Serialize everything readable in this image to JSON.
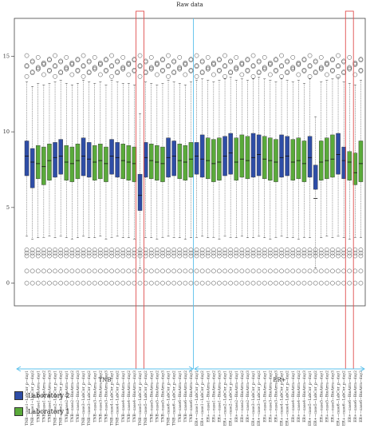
{
  "chart_data": {
    "type": "boxplot",
    "title": "Raw data",
    "xlabel": "",
    "ylabel": "",
    "ylim": [
      -1.5,
      17.5
    ],
    "yticks": [
      0,
      5,
      10,
      15
    ],
    "grid": false,
    "groups": [
      {
        "name": "TNB",
        "start": 0,
        "end": 29
      },
      {
        "name": "ER+",
        "start": 30,
        "end": 59
      }
    ],
    "highlighted_samples": [
      20,
      57
    ],
    "series": [
      {
        "name": "Laboratory 2",
        "color": "#2e4da6"
      },
      {
        "name": "Laboratory 1",
        "color": "#5aaa3a"
      }
    ],
    "categories": [
      "TNB−case1−LabCor_p−day1",
      "TNB−case1−LabCor_p−day2",
      "TNB−case1−BioArra−day1",
      "TNB−case1−BioArra−day2",
      "TNB−case1−BioArra−day3",
      "TNB−case2−LabCor_p−day1",
      "TNB−case2−LabCor_p−day2",
      "TNB−case2−BioArra−day1",
      "TNB−case2−BioArra−day2",
      "TNB−case2−BioArra−day3",
      "TNB−case3−LabCor_p−day1",
      "TNB−case3−LabCor_p−day2",
      "TNB−case3−BioArra−day1",
      "TNB−case3−BioArra−day2",
      "TNB−case3−BioArra−day3",
      "TNB−case4−LabCor_p−day1",
      "TNB−case4−LabCor_p−day2",
      "TNB−case4−BioArra−day1",
      "TNB−case4−BioArra−day2",
      "TNB−case4−BioArra−day3",
      "TNB−case5−LabCor_p−day1",
      "TNB−case5−LabCor_p−day2",
      "TNB−case5−BioArra−day1",
      "TNB−case5−BioArra−day2",
      "TNB−case5−BioArra−day3",
      "TNB−case6−LabCor_p−day1",
      "TNB−case6−LabCor_p−day2",
      "TNB−case6−BioArra−day1",
      "TNB−case6−BioArra−day2",
      "TNB−case6−BioArra−day3",
      "ER+−case1−LabCor_p−day1",
      "ER+−case1−LabCor_p−day2",
      "ER+−case1−BioArra−day1",
      "ER+−case1−BioArra−day2",
      "ER+−case1−BioArra−day3",
      "ER+−case2−LabCor_p−day1",
      "ER+−case2−LabCor_p−day2",
      "ER+−case2−BioArra−day1",
      "ER+−case2−BioArra−day2",
      "ER+−case2−BioArra−day3",
      "ER+−case3−LabCor_p−day1",
      "ER+−case3−LabCor_p−day2",
      "ER+−case3−BioArra−day1",
      "ER+−case3−BioArra−day2",
      "ER+−case3−BioArra−day3",
      "ER+−case4−LabCor_p−day1",
      "ER+−case4−LabCor_p−day2",
      "ER+−case4−BioArra−day1",
      "ER+−case4−BioArra−day2",
      "ER+−case4−BioArra−day3",
      "ER+−case5−LabCor_p−day1",
      "ER+−case5−LabCor_p−day2",
      "ER+−case5−BioArra−day1",
      "ER+−case5−BioArra−day2",
      "ER+−case5−BioArra−day3",
      "ER+−case6−LabCor_p−day1",
      "ER+−case6−LabCor_p−day2",
      "ER+−case6−BioArra−day1",
      "ER+−case6−BioArra−day2",
      "ER+−case6−BioArra−day3"
    ],
    "lab": [
      2,
      2,
      1,
      1,
      1,
      2,
      2,
      1,
      1,
      1,
      2,
      2,
      1,
      1,
      1,
      2,
      2,
      1,
      1,
      1,
      2,
      2,
      1,
      1,
      1,
      2,
      2,
      1,
      1,
      1,
      2,
      2,
      1,
      1,
      1,
      2,
      2,
      1,
      1,
      1,
      2,
      2,
      1,
      1,
      1,
      2,
      2,
      1,
      1,
      1,
      2,
      2,
      1,
      1,
      1,
      2,
      2,
      1,
      1,
      1
    ],
    "q1": [
      7.1,
      6.3,
      6.9,
      6.5,
      6.8,
      7.0,
      7.2,
      6.8,
      6.7,
      6.9,
      7.1,
      7.0,
      6.8,
      6.9,
      6.7,
      7.2,
      7.0,
      6.9,
      6.8,
      6.7,
      4.8,
      7.0,
      6.9,
      6.8,
      6.7,
      7.0,
      7.1,
      6.9,
      6.8,
      7.0,
      7.2,
      7.0,
      6.9,
      6.7,
      6.8,
      7.1,
      7.2,
      6.8,
      7.0,
      6.9,
      7.0,
      7.1,
      6.9,
      6.8,
      6.7,
      7.0,
      7.1,
      6.8,
      6.9,
      6.7,
      7.0,
      6.2,
      6.8,
      6.9,
      7.0,
      7.2,
      6.9,
      6.8,
      6.5,
      6.7
    ],
    "median": [
      8.4,
      8.0,
      7.9,
      7.7,
      8.1,
      8.3,
      8.4,
      8.0,
      7.9,
      8.1,
      8.4,
      8.2,
      8.0,
      8.1,
      7.9,
      8.4,
      8.3,
      8.1,
      8.0,
      7.9,
      5.8,
      8.3,
      8.1,
      8.0,
      7.9,
      8.3,
      8.4,
      8.1,
      8.0,
      8.2,
      8.4,
      8.2,
      8.1,
      7.9,
      8.0,
      8.4,
      8.6,
      8.0,
      8.2,
      8.1,
      8.3,
      8.5,
      8.2,
      8.1,
      8.0,
      8.3,
      8.4,
      8.0,
      8.1,
      7.9,
      8.3,
      5.6,
      8.0,
      8.1,
      8.2,
      8.5,
      8.1,
      8.0,
      7.3,
      7.9
    ],
    "q3": [
      9.4,
      8.9,
      9.1,
      9.0,
      9.2,
      9.3,
      9.5,
      9.1,
      9.0,
      9.2,
      9.6,
      9.3,
      9.1,
      9.2,
      9.0,
      9.5,
      9.3,
      9.2,
      9.1,
      9.0,
      7.2,
      9.3,
      9.2,
      9.1,
      9.0,
      9.6,
      9.4,
      9.2,
      9.1,
      9.3,
      9.3,
      9.8,
      9.6,
      9.5,
      9.6,
      9.7,
      9.9,
      9.6,
      9.8,
      9.7,
      9.9,
      9.8,
      9.7,
      9.6,
      9.5,
      9.8,
      9.7,
      9.5,
      9.6,
      9.4,
      9.7,
      7.8,
      9.4,
      9.6,
      9.8,
      9.9,
      9.0,
      8.7,
      8.6,
      9.4
    ],
    "whisker_low": [
      3.1,
      2.9,
      3.0,
      3.0,
      3.1,
      3.0,
      3.1,
      3.0,
      2.9,
      3.0,
      3.1,
      3.0,
      3.0,
      3.1,
      2.9,
      3.0,
      3.1,
      3.0,
      3.0,
      2.9,
      1.0,
      3.0,
      3.0,
      2.9,
      3.0,
      3.1,
      3.0,
      3.0,
      2.9,
      3.0,
      3.0,
      3.1,
      3.0,
      3.0,
      2.9,
      3.1,
      3.0,
      3.0,
      3.1,
      3.0,
      3.0,
      3.1,
      3.0,
      2.9,
      3.0,
      3.1,
      3.0,
      3.0,
      2.9,
      3.0,
      3.0,
      1.0,
      3.0,
      3.1,
      3.0,
      3.1,
      3.0,
      2.9,
      3.0,
      3.0
    ],
    "whisker_high": [
      13.3,
      13.0,
      13.2,
      13.1,
      13.2,
      13.3,
      13.4,
      13.2,
      13.1,
      13.2,
      13.4,
      13.3,
      13.2,
      13.3,
      13.1,
      13.4,
      13.3,
      13.2,
      13.2,
      13.1,
      11.2,
      13.3,
      13.2,
      13.1,
      13.2,
      13.4,
      13.3,
      13.2,
      13.1,
      13.3,
      13.4,
      13.5,
      13.4,
      13.3,
      13.4,
      13.5,
      13.6,
      13.4,
      13.5,
      13.4,
      13.5,
      13.6,
      13.5,
      13.4,
      13.3,
      13.5,
      13.4,
      13.3,
      13.4,
      13.2,
      13.5,
      11.0,
      13.3,
      13.4,
      13.5,
      13.6,
      13.3,
      13.2,
      13.1,
      13.4
    ],
    "outliers_high": [
      13.9,
      14.2,
      14.5,
      14.8
    ],
    "outliers_low": [
      2.4,
      2.0,
      1.6,
      0.9,
      0.0
    ]
  },
  "legend": {
    "lab2": "Laboratory 2",
    "lab1": "Laboratory 1"
  }
}
